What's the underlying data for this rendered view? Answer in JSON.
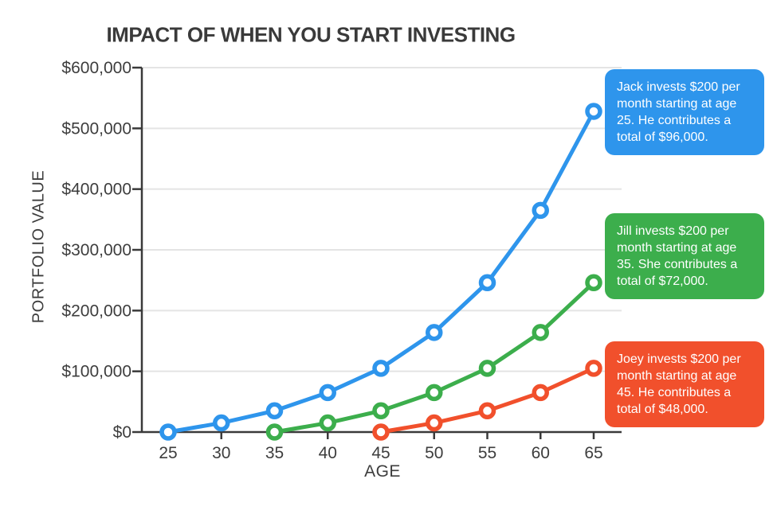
{
  "title": "IMPACT OF WHEN YOU START INVESTING",
  "chart_data": {
    "type": "line",
    "title": "IMPACT OF WHEN YOU START INVESTING",
    "xlabel": "AGE",
    "ylabel": "PORTFOLIO VALUE",
    "x_ticks": [
      25,
      30,
      35,
      40,
      45,
      50,
      55,
      60,
      65
    ],
    "x_tick_labels": [
      "25",
      "30",
      "35",
      "40",
      "45",
      "50",
      "55",
      "60",
      "65"
    ],
    "y_ticks": [
      0,
      100000,
      200000,
      300000,
      400000,
      500000,
      600000
    ],
    "y_tick_labels": [
      "$0",
      "$100,000",
      "$200,000",
      "$300,000",
      "$400,000",
      "$500,000",
      "$600,000"
    ],
    "ylim": [
      0,
      600000
    ],
    "xlim": [
      22.5,
      67.5
    ],
    "grid": "horizontal",
    "legend_position": "none (colored callout annotations at right)",
    "marker_style": "open circle, white fill, colored stroke",
    "series": [
      {
        "name": "Jack (starts at 25)",
        "color": "#2E95EC",
        "x": [
          25,
          30,
          35,
          40,
          45,
          50,
          55,
          60,
          65
        ],
        "y": [
          0,
          15000,
          35000,
          65000,
          105000,
          164000,
          246000,
          365000,
          528000
        ]
      },
      {
        "name": "Jill (starts at 35)",
        "color": "#3CAE4C",
        "x": [
          35,
          40,
          45,
          50,
          55,
          60,
          65
        ],
        "y": [
          0,
          15000,
          35000,
          65000,
          105000,
          164000,
          246000
        ]
      },
      {
        "name": "Joey (starts at 45)",
        "color": "#F1502C",
        "x": [
          45,
          50,
          55,
          60,
          65
        ],
        "y": [
          0,
          15000,
          35000,
          65000,
          105000
        ]
      }
    ]
  },
  "annotations": [
    {
      "name": "jack",
      "text": "Jack invests $200 per month starting at age 25. He contributes a total of $96,000.",
      "color": "#2E95EC"
    },
    {
      "name": "jill",
      "text": "Jill invests $200 per month starting at age 35. She contributes a total of $72,000.",
      "color": "#3CAE4C"
    },
    {
      "name": "joey",
      "text": "Joey invests $200 per month starting at age 45. He contributes a total of $48,000.",
      "color": "#F1502C"
    }
  ],
  "colors": {
    "background": "#ffffff",
    "title_text": "#3a3a3a",
    "axis_text": "#3d3d3d",
    "axis_spine": "#3a3a3a",
    "gridline": "#e4e4e4",
    "marker_fill": "#ffffff"
  }
}
